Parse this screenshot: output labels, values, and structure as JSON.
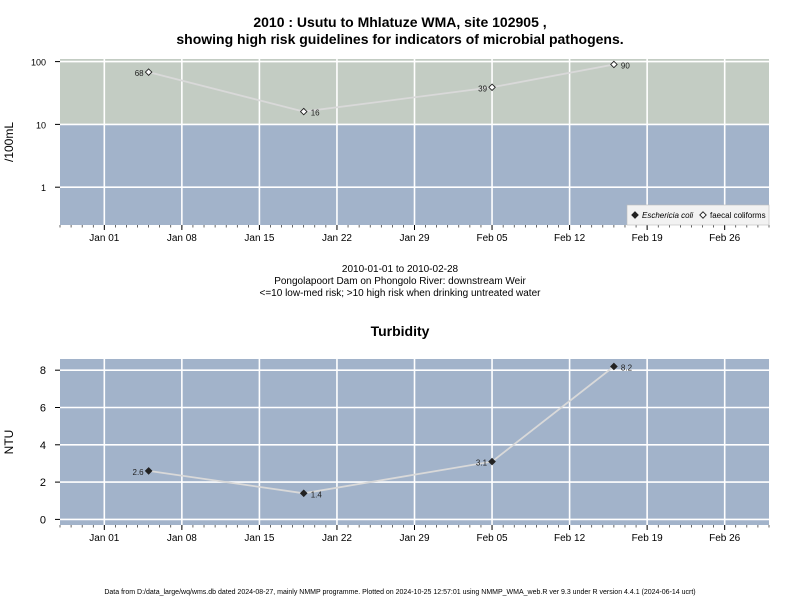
{
  "title_line1": "2010 : Usutu to Mhlatuze WMA, site 102905 ,",
  "title_line2": "showing high risk guidelines for indicators of microbial pathogens.",
  "date_range": "2010-01-01 to 2010-02-28",
  "site_description": "Pongolapoort Dam on Phongolo River: downstream Weir",
  "risk_note": "<=10 low-med risk; >10 high risk when drinking untreated water",
  "turbidity_title": "Turbidity",
  "footer": "Data from D:/data_large/wq/wms.db dated 2024-08-27, mainly NMMP programme. Plotted on 2024-10-25 12:57:01 using NMMP_WMA_web.R ver 9.3 under R version 4.4.1 (2024-06-14 ucrt)",
  "colors": {
    "background_panel": "#a2b3ca",
    "high_risk_band": "#c3ccc3",
    "grid": "#ffffff",
    "series_line": "#d9d9d9"
  },
  "chart_data": [
    {
      "type": "line",
      "title": "2010 : Usutu to Mhlatuze WMA, site 102905 , showing high risk guidelines for indicators of microbial pathogens.",
      "ylabel": "/100mL",
      "y_scale": "log",
      "ylim": [
        0.25,
        110
      ],
      "xlim": [
        "2009-12-28",
        "2010-03-02"
      ],
      "x_ticks": [
        "Jan 01",
        "Jan 08",
        "Jan 15",
        "Jan 22",
        "Jan 29",
        "Feb 05",
        "Feb 12",
        "Feb 19",
        "Feb 26"
      ],
      "y_ticks": [
        "1",
        "10",
        "100"
      ],
      "grid": true,
      "high_risk_threshold": 10,
      "legend_position": "bottom-right",
      "series": [
        {
          "name": "Eschericia coli",
          "marker": "filled-diamond",
          "x": [],
          "y": []
        },
        {
          "name": "faecal coliforms",
          "marker": "open-diamond",
          "x": [
            "2010-01-05",
            "2010-01-19",
            "2010-02-05",
            "2010-02-16"
          ],
          "y": [
            68,
            16,
            39,
            90
          ],
          "labels": [
            "68",
            "16",
            "39",
            "90"
          ]
        }
      ]
    },
    {
      "type": "line",
      "title": "Turbidity",
      "ylabel": "NTU",
      "ylim": [
        -0.3,
        8.6
      ],
      "xlim": [
        "2009-12-28",
        "2010-03-02"
      ],
      "x_ticks": [
        "Jan 01",
        "Jan 08",
        "Jan 15",
        "Jan 22",
        "Jan 29",
        "Feb 05",
        "Feb 12",
        "Feb 19",
        "Feb 26"
      ],
      "y_ticks": [
        "0",
        "2",
        "4",
        "6",
        "8"
      ],
      "grid": true,
      "series": [
        {
          "marker": "filled-diamond",
          "x": [
            "2010-01-05",
            "2010-01-19",
            "2010-02-05",
            "2010-02-16"
          ],
          "y": [
            2.6,
            1.4,
            3.1,
            8.2
          ],
          "labels": [
            "2.6",
            "1.4",
            "3.1",
            "8.2"
          ]
        }
      ]
    }
  ]
}
